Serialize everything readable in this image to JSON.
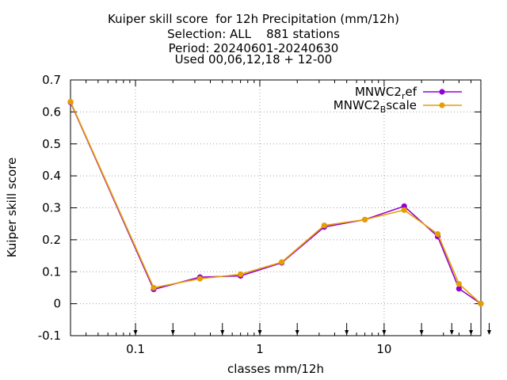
{
  "chart_data": {
    "type": "line",
    "title_lines": [
      "Kuiper skill score  for 12h Precipitation (mm/12h)",
      "Selection: ALL    881 stations",
      "Period: 20240601-20240630",
      "Used 00,06,12,18 + 12-00"
    ],
    "xlabel": "classes mm/12h",
    "ylabel": "Kuiper skill score",
    "x_scale": "log",
    "xlim": [
      0.03,
      60
    ],
    "ylim": [
      -0.1,
      0.7
    ],
    "x_ticks": [
      0.1,
      1,
      10
    ],
    "x_tick_labels": [
      "0.1",
      "1",
      "10"
    ],
    "y_ticks": [
      -0.1,
      0,
      0.1,
      0.2,
      0.3,
      0.4,
      0.5,
      0.6,
      0.7
    ],
    "y_tick_labels": [
      "-0.1",
      "0",
      "0.1",
      "0.2",
      "0.3",
      "0.4",
      "0.5",
      "0.6",
      "0.7"
    ],
    "grid": true,
    "legend_position": "top-right",
    "class_thresholds": [
      0.1,
      0.2,
      0.5,
      1,
      2,
      5,
      10,
      20,
      35,
      50,
      70
    ],
    "x": [
      0.03,
      0.14,
      0.33,
      0.7,
      1.5,
      3.3,
      7,
      14.5,
      27,
      40,
      60
    ],
    "series": [
      {
        "name_base": "MNWC2",
        "name_sub": "r",
        "name_rest": "ef",
        "color": "#9400d3",
        "values": [
          0.63,
          0.045,
          0.083,
          0.087,
          0.128,
          0.24,
          0.263,
          0.305,
          0.21,
          0.047,
          0.0
        ]
      },
      {
        "name_base": "MNWC2",
        "name_sub": "B",
        "name_rest": "scale",
        "color": "#e69f00",
        "values": [
          0.632,
          0.05,
          0.078,
          0.092,
          0.13,
          0.245,
          0.263,
          0.293,
          0.218,
          0.062,
          0.0
        ]
      }
    ]
  }
}
